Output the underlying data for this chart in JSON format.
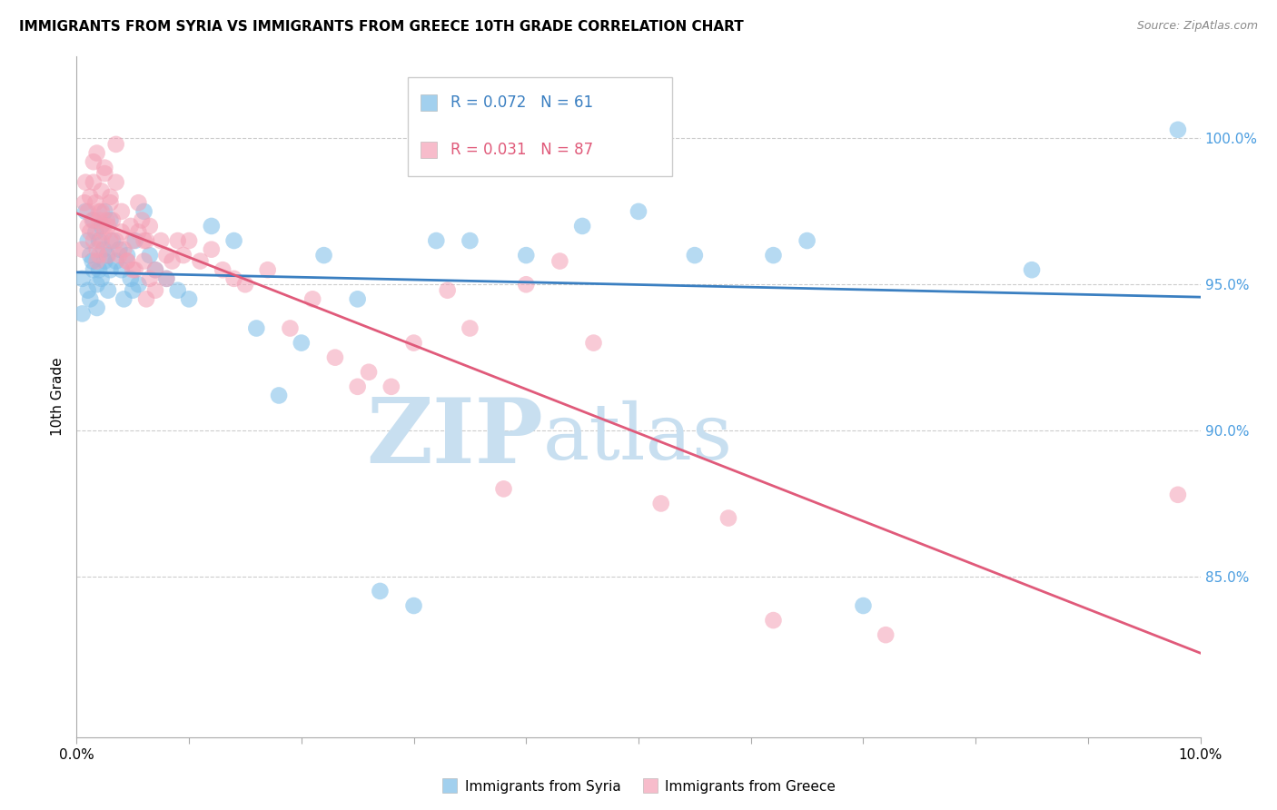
{
  "title": "IMMIGRANTS FROM SYRIA VS IMMIGRANTS FROM GREECE 10TH GRADE CORRELATION CHART",
  "source": "Source: ZipAtlas.com",
  "ylabel": "10th Grade",
  "x_min": 0.0,
  "x_max": 10.0,
  "y_min": 79.5,
  "y_max": 102.8,
  "y_ticks": [
    85.0,
    90.0,
    95.0,
    100.0
  ],
  "syria_R": 0.072,
  "syria_N": 61,
  "greece_R": 0.031,
  "greece_N": 87,
  "syria_color": "#7bbde8",
  "greece_color": "#f4a0b5",
  "syria_line_color": "#3a7fc1",
  "greece_line_color": "#e05a7a",
  "right_tick_color": "#4a9de0",
  "watermark_zip_color": "#c8dff0",
  "watermark_atlas_color": "#c8dff0",
  "legend_label_syria": "Immigrants from Syria",
  "legend_label_greece": "Immigrants from Greece",
  "syria_x": [
    0.05,
    0.05,
    0.08,
    0.1,
    0.1,
    0.12,
    0.12,
    0.14,
    0.15,
    0.15,
    0.17,
    0.18,
    0.18,
    0.2,
    0.2,
    0.22,
    0.22,
    0.24,
    0.25,
    0.25,
    0.27,
    0.28,
    0.3,
    0.3,
    0.32,
    0.35,
    0.38,
    0.4,
    0.42,
    0.45,
    0.48,
    0.5,
    0.52,
    0.55,
    0.6,
    0.65,
    0.7,
    0.8,
    0.9,
    1.0,
    1.2,
    1.4,
    1.6,
    1.8,
    2.0,
    2.2,
    2.5,
    2.7,
    3.0,
    3.5,
    4.0,
    4.5,
    5.0,
    5.5,
    6.5,
    7.0,
    8.5,
    9.8,
    4.8,
    6.2,
    3.2
  ],
  "syria_y": [
    95.2,
    94.0,
    97.5,
    96.5,
    94.8,
    96.0,
    94.5,
    95.8,
    97.2,
    95.5,
    96.8,
    95.0,
    94.2,
    96.5,
    95.5,
    97.0,
    95.2,
    96.2,
    97.5,
    95.8,
    96.0,
    94.8,
    97.2,
    95.5,
    96.5,
    95.8,
    96.2,
    95.5,
    94.5,
    96.0,
    95.2,
    94.8,
    96.5,
    95.0,
    97.5,
    96.0,
    95.5,
    95.2,
    94.8,
    94.5,
    97.0,
    96.5,
    93.5,
    91.2,
    93.0,
    96.0,
    94.5,
    84.5,
    84.0,
    96.5,
    96.0,
    97.0,
    97.5,
    96.0,
    96.5,
    84.0,
    95.5,
    100.3,
    100.3,
    96.0,
    96.5
  ],
  "greece_x": [
    0.05,
    0.07,
    0.08,
    0.1,
    0.1,
    0.12,
    0.12,
    0.14,
    0.15,
    0.15,
    0.17,
    0.18,
    0.18,
    0.2,
    0.2,
    0.22,
    0.22,
    0.24,
    0.25,
    0.25,
    0.27,
    0.28,
    0.3,
    0.3,
    0.32,
    0.35,
    0.38,
    0.4,
    0.42,
    0.45,
    0.48,
    0.5,
    0.52,
    0.55,
    0.58,
    0.6,
    0.62,
    0.65,
    0.7,
    0.75,
    0.8,
    0.85,
    0.9,
    0.95,
    1.0,
    1.1,
    1.2,
    1.3,
    1.5,
    1.7,
    1.9,
    2.1,
    2.3,
    2.6,
    2.8,
    3.0,
    3.3,
    3.8,
    4.3,
    4.6,
    5.2,
    5.8,
    6.2,
    7.2,
    9.8,
    0.62,
    1.4,
    2.5,
    3.5,
    4.0,
    0.35,
    0.55,
    0.65,
    0.18,
    0.25,
    0.3,
    0.5,
    0.15,
    0.22,
    0.4,
    0.2,
    0.28,
    0.6,
    0.8,
    0.45,
    0.7,
    0.35
  ],
  "greece_y": [
    96.2,
    97.8,
    98.5,
    97.5,
    97.0,
    98.0,
    96.8,
    97.2,
    98.5,
    96.5,
    97.8,
    96.2,
    95.8,
    97.5,
    96.0,
    98.2,
    96.5,
    97.0,
    98.8,
    96.8,
    97.2,
    96.0,
    97.8,
    96.5,
    97.2,
    96.5,
    96.0,
    97.5,
    96.2,
    95.8,
    97.0,
    96.5,
    95.5,
    96.8,
    97.2,
    95.8,
    96.5,
    97.0,
    95.5,
    96.5,
    96.0,
    95.8,
    96.5,
    96.0,
    96.5,
    95.8,
    96.2,
    95.5,
    95.0,
    95.5,
    93.5,
    94.5,
    92.5,
    92.0,
    91.5,
    93.0,
    94.8,
    88.0,
    95.8,
    93.0,
    87.5,
    87.0,
    83.5,
    83.0,
    87.8,
    94.5,
    95.2,
    91.5,
    93.5,
    95.0,
    98.5,
    97.8,
    95.2,
    99.5,
    99.0,
    98.0,
    95.5,
    99.2,
    97.5,
    96.8,
    97.2,
    97.0,
    96.5,
    95.2,
    95.8,
    94.8,
    99.8
  ]
}
